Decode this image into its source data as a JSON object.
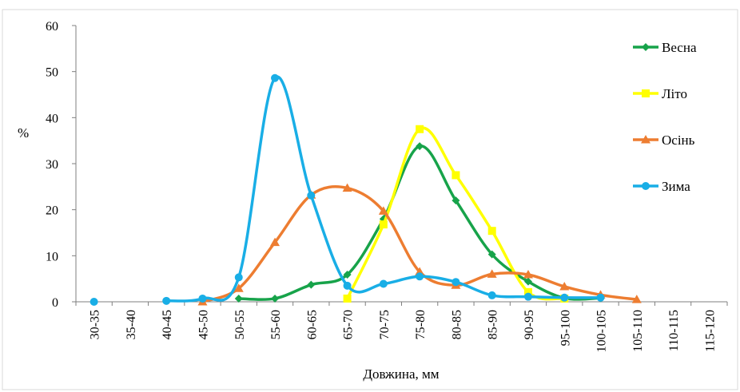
{
  "chart_data": {
    "type": "line",
    "title": "",
    "xlabel": "Довжина, мм",
    "ylabel": "%",
    "ylim": [
      0,
      60
    ],
    "yticks": [
      0,
      10,
      20,
      30,
      40,
      50,
      60
    ],
    "grid": false,
    "legend_position": "right",
    "smooth": true,
    "categories": [
      "30-35",
      "35-40",
      "40-45",
      "45-50",
      "50-55",
      "55-60",
      "60-65",
      "65-70",
      "70-75",
      "75-80",
      "80-85",
      "85-90",
      "90-95",
      "95-100",
      "100-105",
      "105-110",
      "110-115",
      "115-120"
    ],
    "series": [
      {
        "name": "Весна",
        "color": "#17a34a",
        "marker": "diamond",
        "values": [
          null,
          null,
          null,
          null,
          0.7,
          0.7,
          3.7,
          5.9,
          18,
          33.8,
          22,
          10.3,
          4.4,
          0.8,
          0.8,
          null,
          null,
          null
        ]
      },
      {
        "name": "Літо",
        "color": "#ffff00",
        "marker": "square",
        "values": [
          null,
          null,
          null,
          null,
          null,
          null,
          null,
          0.7,
          16.8,
          37.5,
          27.5,
          15.4,
          2.1,
          0.7,
          null,
          null,
          null,
          null
        ]
      },
      {
        "name": "Осінь",
        "color": "#ed7d31",
        "marker": "triangle",
        "values": [
          null,
          null,
          null,
          0,
          2.9,
          12.9,
          23.2,
          24.7,
          19.7,
          6.5,
          3.6,
          6.0,
          5.9,
          3.3,
          1.5,
          0.5,
          null,
          null
        ]
      },
      {
        "name": "Зима",
        "color": "#19aee6",
        "marker": "circle",
        "values": [
          0,
          null,
          0.2,
          0.7,
          5.3,
          48.6,
          23.1,
          3.5,
          3.9,
          5.5,
          4.3,
          1.4,
          1.1,
          0.9,
          0.9,
          null,
          null,
          null
        ]
      }
    ]
  }
}
